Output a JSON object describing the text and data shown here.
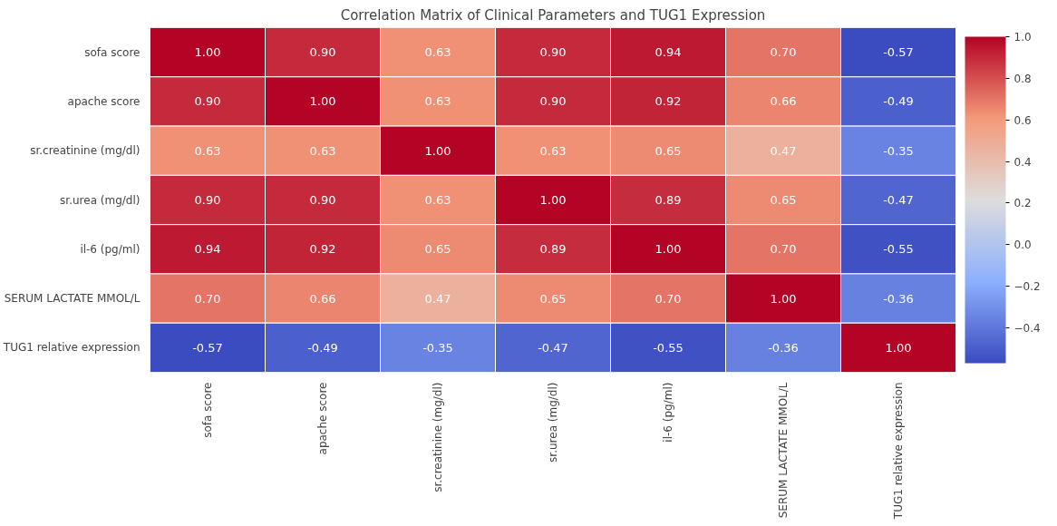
{
  "chart_data": {
    "type": "heatmap",
    "title": "Correlation Matrix of Clinical Parameters and TUG1 Expression",
    "categories": [
      "sofa score",
      "apache score",
      "sr.creatinine (mg/dl)",
      "sr.urea (mg/dl)",
      "il-6 (pg/ml)",
      "SERUM LACTATE MMOL/L",
      "TUG1 relative expression"
    ],
    "y_categories": [
      "sofa score",
      "apache score",
      "sr.creatinine (mg/dl)",
      "sr.urea (mg/dl)",
      "il-6 (pg/ml)",
      "SERUM LACTATE MMOL/L",
      "TUG1 relative expression"
    ],
    "cells": [
      [
        1.0,
        0.9,
        0.63,
        0.9,
        0.94,
        0.7,
        -0.57
      ],
      [
        0.9,
        1.0,
        0.63,
        0.9,
        0.92,
        0.66,
        -0.49
      ],
      [
        0.63,
        0.63,
        1.0,
        0.63,
        0.65,
        0.47,
        -0.35
      ],
      [
        0.9,
        0.9,
        0.63,
        1.0,
        0.89,
        0.65,
        -0.47
      ],
      [
        0.94,
        0.92,
        0.65,
        0.89,
        1.0,
        0.7,
        -0.55
      ],
      [
        0.7,
        0.66,
        0.47,
        0.65,
        0.7,
        1.0,
        -0.36
      ],
      [
        -0.57,
        -0.49,
        -0.35,
        -0.47,
        -0.55,
        -0.36,
        1.0
      ]
    ],
    "cell_labels": [
      [
        "1.00",
        "0.90",
        "0.63",
        "0.90",
        "0.94",
        "0.70",
        "-0.57"
      ],
      [
        "0.90",
        "1.00",
        "0.63",
        "0.90",
        "0.92",
        "0.66",
        "-0.49"
      ],
      [
        "0.63",
        "0.63",
        "1.00",
        "0.63",
        "0.65",
        "0.47",
        "-0.35"
      ],
      [
        "0.90",
        "0.90",
        "0.63",
        "1.00",
        "0.89",
        "0.65",
        "-0.47"
      ],
      [
        "0.94",
        "0.92",
        "0.65",
        "0.89",
        "1.00",
        "0.70",
        "-0.55"
      ],
      [
        "0.70",
        "0.66",
        "0.47",
        "0.65",
        "0.70",
        "1.00",
        "-0.36"
      ],
      [
        "-0.57",
        "-0.49",
        "-0.35",
        "-0.47",
        "-0.55",
        "-0.36",
        "1.00"
      ]
    ],
    "clim": [
      -0.57,
      1.0
    ],
    "cticks": [
      {
        "value": -0.4,
        "label": "−0.4"
      },
      {
        "value": -0.2,
        "label": "−0.2"
      },
      {
        "value": 0.0,
        "label": "0.0"
      },
      {
        "value": 0.2,
        "label": "0.2"
      },
      {
        "value": 0.4,
        "label": "0.4"
      },
      {
        "value": 0.6,
        "label": "0.6"
      },
      {
        "value": 0.8,
        "label": "0.8"
      },
      {
        "value": 1.0,
        "label": "1.0"
      }
    ]
  }
}
